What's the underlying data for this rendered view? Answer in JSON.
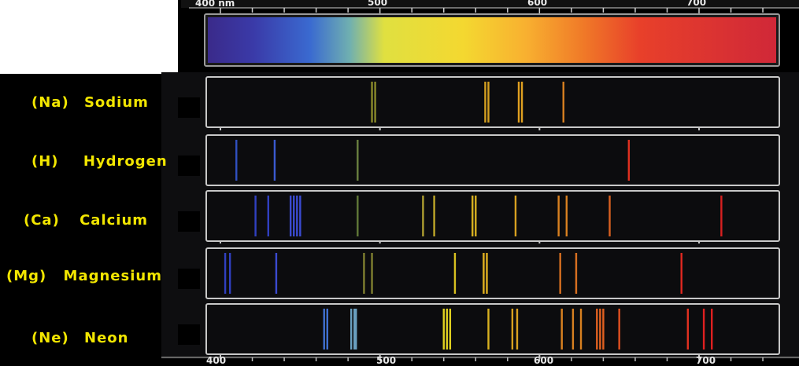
{
  "scale": {
    "labels_top": [
      "400 nm",
      "500",
      "600",
      "700"
    ],
    "labels_bottom": [
      "400",
      "500",
      "600",
      "700"
    ]
  },
  "elements": [
    {
      "symbol": "(Na)",
      "name": "Sodium",
      "lines": [
        {
          "nm": 495,
          "color": "#8a8a2a"
        },
        {
          "nm": 497,
          "color": "#8a8a2a"
        },
        {
          "nm": 566,
          "color": "#d4a020"
        },
        {
          "nm": 568,
          "color": "#d4a020"
        },
        {
          "nm": 587,
          "color": "#e0a020"
        },
        {
          "nm": 589,
          "color": "#e0a020"
        },
        {
          "nm": 615,
          "color": "#d88020"
        }
      ]
    },
    {
      "symbol": "(H)",
      "name": "Hydrogen",
      "lines": [
        {
          "nm": 410,
          "color": "#3050c0"
        },
        {
          "nm": 434,
          "color": "#3a5ad0"
        },
        {
          "nm": 486,
          "color": "#6a8040"
        },
        {
          "nm": 656,
          "color": "#e03020"
        }
      ]
    },
    {
      "symbol": "(Ca)",
      "name": "Calcium",
      "lines": [
        {
          "nm": 422,
          "color": "#3040c0"
        },
        {
          "nm": 430,
          "color": "#3040c0"
        },
        {
          "nm": 444,
          "color": "#3a4ad0"
        },
        {
          "nm": 446,
          "color": "#3a4ad0"
        },
        {
          "nm": 448,
          "color": "#3a4ad0"
        },
        {
          "nm": 450,
          "color": "#3a4ad0"
        },
        {
          "nm": 486,
          "color": "#607838"
        },
        {
          "nm": 527,
          "color": "#b0a030"
        },
        {
          "nm": 534,
          "color": "#c0a828"
        },
        {
          "nm": 558,
          "color": "#d8b020"
        },
        {
          "nm": 560,
          "color": "#d8b020"
        },
        {
          "nm": 585,
          "color": "#d8a020"
        },
        {
          "nm": 612,
          "color": "#d88020"
        },
        {
          "nm": 617,
          "color": "#d88020"
        },
        {
          "nm": 644,
          "color": "#d86020"
        },
        {
          "nm": 714,
          "color": "#d82020"
        }
      ]
    },
    {
      "symbol": "(Mg)",
      "name": "Magnesium",
      "lines": [
        {
          "nm": 403,
          "color": "#3040c0"
        },
        {
          "nm": 406,
          "color": "#3040c0"
        },
        {
          "nm": 435,
          "color": "#3a4ad0"
        },
        {
          "nm": 490,
          "color": "#808030"
        },
        {
          "nm": 495,
          "color": "#808030"
        },
        {
          "nm": 547,
          "color": "#d8c020"
        },
        {
          "nm": 565,
          "color": "#e0b020"
        },
        {
          "nm": 567,
          "color": "#e0b020"
        },
        {
          "nm": 613,
          "color": "#d87020"
        },
        {
          "nm": 623,
          "color": "#d87020"
        },
        {
          "nm": 689,
          "color": "#e02820"
        }
      ]
    },
    {
      "symbol": "(Ne)",
      "name": "Neon",
      "lines": [
        {
          "nm": 465,
          "color": "#4070d0"
        },
        {
          "nm": 467,
          "color": "#4070d0"
        },
        {
          "nm": 482,
          "color": "#6aa0c0"
        },
        {
          "nm": 484,
          "color": "#6aa0c0"
        },
        {
          "nm": 485,
          "color": "#6aa0c0"
        },
        {
          "nm": 540,
          "color": "#e0d020"
        },
        {
          "nm": 542,
          "color": "#e0d020"
        },
        {
          "nm": 544,
          "color": "#e0d020"
        },
        {
          "nm": 568,
          "color": "#d8b020"
        },
        {
          "nm": 583,
          "color": "#d8a020"
        },
        {
          "nm": 586,
          "color": "#d8a020"
        },
        {
          "nm": 614,
          "color": "#d88020"
        },
        {
          "nm": 621,
          "color": "#d88020"
        },
        {
          "nm": 626,
          "color": "#d88020"
        },
        {
          "nm": 636,
          "color": "#e06020"
        },
        {
          "nm": 638,
          "color": "#e06020"
        },
        {
          "nm": 640,
          "color": "#e06020"
        },
        {
          "nm": 650,
          "color": "#e05020"
        },
        {
          "nm": 693,
          "color": "#e03020"
        },
        {
          "nm": 703,
          "color": "#e02020"
        },
        {
          "nm": 708,
          "color": "#e02020"
        }
      ]
    }
  ]
}
